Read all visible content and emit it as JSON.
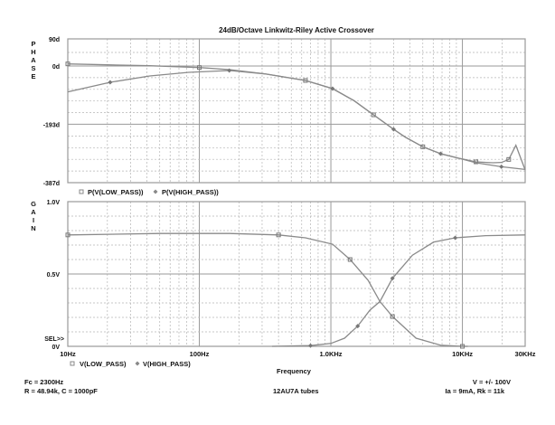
{
  "chart_data": [
    {
      "type": "line",
      "title": "24dB/Octave Linkwitz-Riley Active Crossover",
      "ylabel": "PHASE",
      "xscale": "log",
      "xlim": [
        10,
        30000
      ],
      "ylim": [
        -387,
        90
      ],
      "ytick_labels": [
        {
          "value": 90,
          "label": "90d"
        },
        {
          "value": 0,
          "label": "0d"
        },
        {
          "value": -193,
          "label": "-193d"
        },
        {
          "value": -387,
          "label": "-387d"
        }
      ],
      "grid": true,
      "legend": [
        "P(V(LOW_PASS))",
        "P(V(HIGH_PASS))"
      ],
      "series": [
        {
          "name": "P(V(LOW_PASS))",
          "marker": "square",
          "x": [
            10,
            20,
            42,
            100,
            169,
            314,
            641,
            1030,
            1500,
            2110,
            3000,
            3680,
            5000,
            6830,
            9380,
            12680,
            17000,
            19800,
            22500,
            25500,
            30000
          ],
          "y": [
            7,
            4,
            1,
            -5,
            -12,
            -26,
            -48,
            -75,
            -115,
            -162,
            -210,
            -236,
            -268,
            -291,
            -306,
            -318,
            -321,
            -320,
            -310,
            -263,
            -345
          ]
        },
        {
          "name": "P(V(HIGH_PASS))",
          "marker": "diamond",
          "x": [
            10,
            21,
            42,
            83,
            169,
            314,
            641,
            1030,
            1500,
            2110,
            3000,
            3680,
            5000,
            6830,
            9380,
            12680,
            19800,
            30000
          ],
          "y": [
            -86,
            -54,
            -33,
            -21,
            -15,
            -26,
            -48,
            -75,
            -115,
            -162,
            -210,
            -236,
            -268,
            -291,
            -306,
            -321,
            -334,
            -343
          ]
        }
      ]
    },
    {
      "type": "line",
      "ylabel": "GAIN",
      "xlabel": "Frequency",
      "xscale": "log",
      "xlim": [
        10,
        30000
      ],
      "ylim": [
        0,
        1.0
      ],
      "ytick_labels": [
        {
          "value": 1.0,
          "label": "1.0V"
        },
        {
          "value": 0.5,
          "label": "0.5V"
        },
        {
          "value": 0,
          "label": "0V"
        }
      ],
      "xtick_labels": [
        {
          "value": 10,
          "label": "10Hz"
        },
        {
          "value": 100,
          "label": "100Hz"
        },
        {
          "value": 1000,
          "label": "1.0KHz"
        },
        {
          "value": 10000,
          "label": "10KHz"
        },
        {
          "value": 30000,
          "label": "30KHz"
        }
      ],
      "grid": true,
      "legend": [
        "V(LOW_PASS)",
        "V(HIGH_PASS)"
      ],
      "selector_label": "SEL>>",
      "series": [
        {
          "name": "V(LOW_PASS)",
          "marker": "square",
          "x": [
            10,
            50,
            170,
            400,
            641,
            1030,
            1400,
            1920,
            2360,
            2940,
            4440,
            6830,
            10000,
            11000
          ],
          "y": [
            0.77,
            0.78,
            0.78,
            0.77,
            0.75,
            0.706,
            0.6,
            0.456,
            0.31,
            0.206,
            0.056,
            0.008,
            0.0,
            0.0
          ]
        },
        {
          "name": "V(HIGH_PASS)",
          "marker": "diamond",
          "x": [
            357,
            700,
            1000,
            1270,
            1600,
            1980,
            2360,
            2940,
            4170,
            6030,
            8810,
            15000,
            30000
          ],
          "y": [
            0.0,
            0.005,
            0.02,
            0.056,
            0.14,
            0.25,
            0.31,
            0.47,
            0.63,
            0.72,
            0.75,
            0.765,
            0.77
          ]
        }
      ]
    }
  ],
  "annotations": {
    "left_line1": "Fc = 2300Hz",
    "left_line2": "R = 48.94k, C = 1000pF",
    "center": "12AU7A tubes",
    "right_line1": "V = +/- 100V",
    "right_line2": "Ia = 9mA, Rk = 11k"
  },
  "colors": {
    "curve": "#8a8a8a",
    "grid": "#b5b5b5",
    "axis": "#9a9a9a"
  }
}
